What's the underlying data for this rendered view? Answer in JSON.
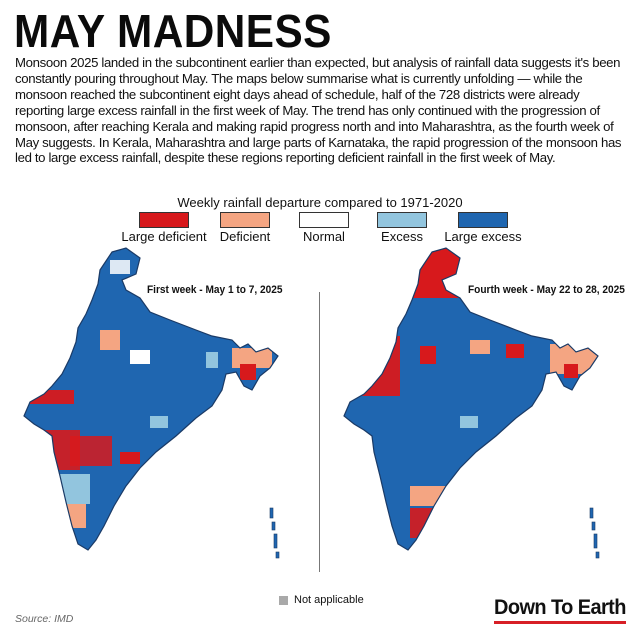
{
  "title": "MAY MADNESS",
  "intro": "Monsoon 2025 landed in the subcontinent earlier than expected, but analysis of rainfall data suggests it's been constantly pouring throughout May. The maps below summarise what is currently unfolding — while the monsoon reached the subcontinent eight days ahead of schedule, half of the 728 districts were already reporting large excess rainfall in the first week of May. The trend has only continued with the progression of monsoon, after reaching Kerala and making rapid progress north and into Maharashtra, as the fourth week of May suggests. In Kerala, Maharashtra and large parts of Karnataka, the rapid progression of the monsoon has led to large excess rainfall, despite these regions reporting deficient rainfall in the first week of May.",
  "legend": {
    "title": "Weekly rainfall departure compared to 1971-2020",
    "items": [
      {
        "label": "Large deficient",
        "color": "#d7191c"
      },
      {
        "label": "Deficient",
        "color": "#f4a582"
      },
      {
        "label": "Normal",
        "color": "#ffffff"
      },
      {
        "label": "Excess",
        "color": "#92c5de"
      },
      {
        "label": "Large excess",
        "color": "#1f66b0"
      }
    ]
  },
  "maps": [
    {
      "label": "First week - May 1 to 7, 2025"
    },
    {
      "label": "Fourth week - May 22 to 28, 2025"
    }
  ],
  "not_applicable": {
    "label": "Not applicable",
    "color": "#a9a9a9"
  },
  "source": "Source:  IMD",
  "brand": "Down To Earth",
  "colors": {
    "brand_red": "#d71f26",
    "border": "#1a3a66"
  }
}
